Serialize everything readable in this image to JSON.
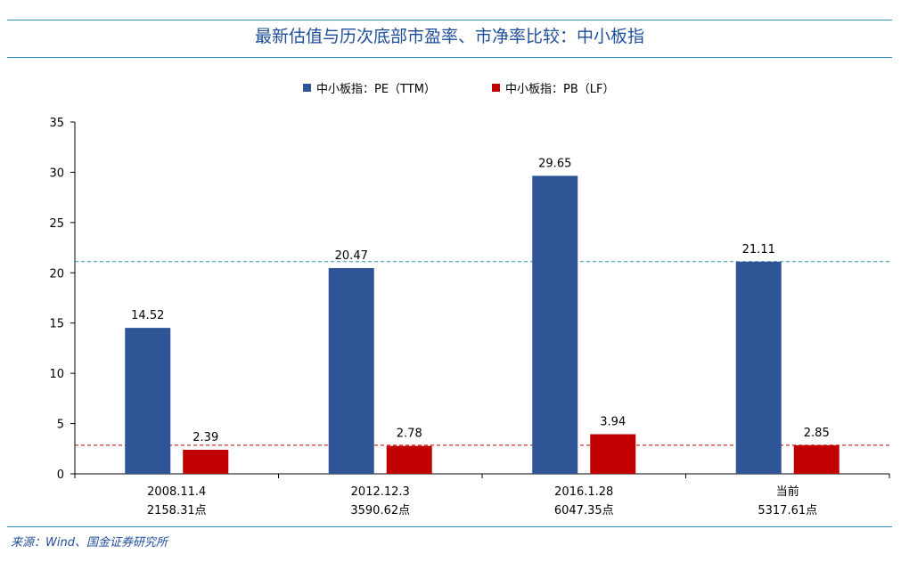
{
  "header": {
    "title": "最新估值与历次底部市盈率、市净率比较：中小板指"
  },
  "footer": {
    "source": "来源：Wind、国金证券研究所"
  },
  "chart_data": {
    "type": "bar",
    "title": "最新估值与历次底部市盈率、市净率比较：中小板指",
    "categories": [
      [
        "2008.11.4",
        "2158.31点"
      ],
      [
        "2012.12.3",
        "3590.62点"
      ],
      [
        "2016.1.28",
        "6047.35点"
      ],
      [
        "当前",
        "5317.61点"
      ]
    ],
    "series": [
      {
        "name": "中小板指：PE（TTM）",
        "color": "#2f5597",
        "values": [
          14.52,
          20.47,
          29.65,
          21.11
        ],
        "labels": [
          "14.52",
          "20.47",
          "29.65",
          "21.11"
        ]
      },
      {
        "name": "中小板指：PB（LF）",
        "color": "#c00000",
        "values": [
          2.39,
          2.78,
          3.94,
          2.85
        ],
        "labels": [
          "2.39",
          "2.78",
          "3.94",
          "2.85"
        ]
      }
    ],
    "reference_lines": [
      {
        "value": 21.11,
        "color": "#2e8fb5",
        "style": "dashed"
      },
      {
        "value": 2.85,
        "color": "#c00000",
        "style": "dashed"
      }
    ],
    "ylim": [
      0,
      35
    ],
    "yticks": [
      0,
      5,
      10,
      15,
      20,
      25,
      30,
      35
    ],
    "xlabel": "",
    "ylabel": "",
    "grid": false,
    "legend": "top-center"
  }
}
